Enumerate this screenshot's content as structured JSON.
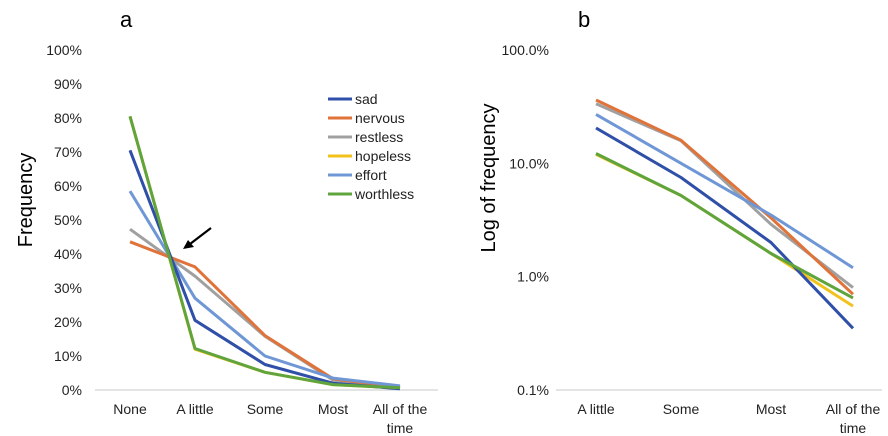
{
  "chart_data": [
    {
      "panel": "a",
      "type": "line",
      "categories": [
        "None",
        "A little",
        "Some",
        "Most",
        "All of the time"
      ],
      "category_lines": [
        [
          "None"
        ],
        [
          "A little"
        ],
        [
          "Some"
        ],
        [
          "Most"
        ],
        [
          "All of the",
          "time"
        ]
      ],
      "ylabel": "Frequency",
      "ylim": [
        0,
        1
      ],
      "yticks": [
        "0%",
        "10%",
        "20%",
        "30%",
        "40%",
        "50%",
        "60%",
        "70%",
        "80%",
        "90%",
        "100%"
      ],
      "grid": false,
      "legend": "right",
      "series": [
        {
          "name": "sad",
          "color": "#2f4fa8",
          "values": [
            0.705,
            0.205,
            0.075,
            0.02,
            0.0035
          ]
        },
        {
          "name": "nervous",
          "color": "#e0733a",
          "values": [
            0.436,
            0.362,
            0.16,
            0.033,
            0.007
          ]
        },
        {
          "name": "restless",
          "color": "#a0a0a0",
          "values": [
            0.473,
            0.335,
            0.158,
            0.029,
            0.008
          ]
        },
        {
          "name": "hopeless",
          "color": "#f2c21c",
          "values": [
            0.805,
            0.12,
            0.052,
            0.016,
            0.0055
          ]
        },
        {
          "name": "effort",
          "color": "#6f97d6",
          "values": [
            0.585,
            0.27,
            0.1,
            0.035,
            0.012
          ]
        },
        {
          "name": "worthless",
          "color": "#5fa43c",
          "values": [
            0.805,
            0.122,
            0.052,
            0.016,
            0.0065
          ]
        }
      ],
      "annotation": "arrow pointing to crossing near A little"
    },
    {
      "panel": "b",
      "type": "line",
      "scale": "log",
      "categories": [
        "A little",
        "Some",
        "Most",
        "All of the time"
      ],
      "category_lines": [
        [
          "A little"
        ],
        [
          "Some"
        ],
        [
          "Most"
        ],
        [
          "All of the",
          "time"
        ]
      ],
      "ylabel": "Log of frequency",
      "ylim": [
        0.001,
        1
      ],
      "yticks": [
        "0.1%",
        "1.0%",
        "10.0%",
        "100.0%"
      ],
      "grid": false,
      "series": [
        {
          "name": "sad",
          "color": "#2f4fa8",
          "values": [
            0.205,
            0.075,
            0.02,
            0.0035
          ]
        },
        {
          "name": "nervous",
          "color": "#e0733a",
          "values": [
            0.362,
            0.16,
            0.033,
            0.007
          ]
        },
        {
          "name": "restless",
          "color": "#a0a0a0",
          "values": [
            0.335,
            0.158,
            0.029,
            0.008
          ]
        },
        {
          "name": "hopeless",
          "color": "#f2c21c",
          "values": [
            0.12,
            0.052,
            0.016,
            0.0055
          ]
        },
        {
          "name": "effort",
          "color": "#6f97d6",
          "values": [
            0.27,
            0.1,
            0.035,
            0.012
          ]
        },
        {
          "name": "worthless",
          "color": "#5fa43c",
          "values": [
            0.122,
            0.052,
            0.016,
            0.0065
          ]
        }
      ]
    }
  ]
}
